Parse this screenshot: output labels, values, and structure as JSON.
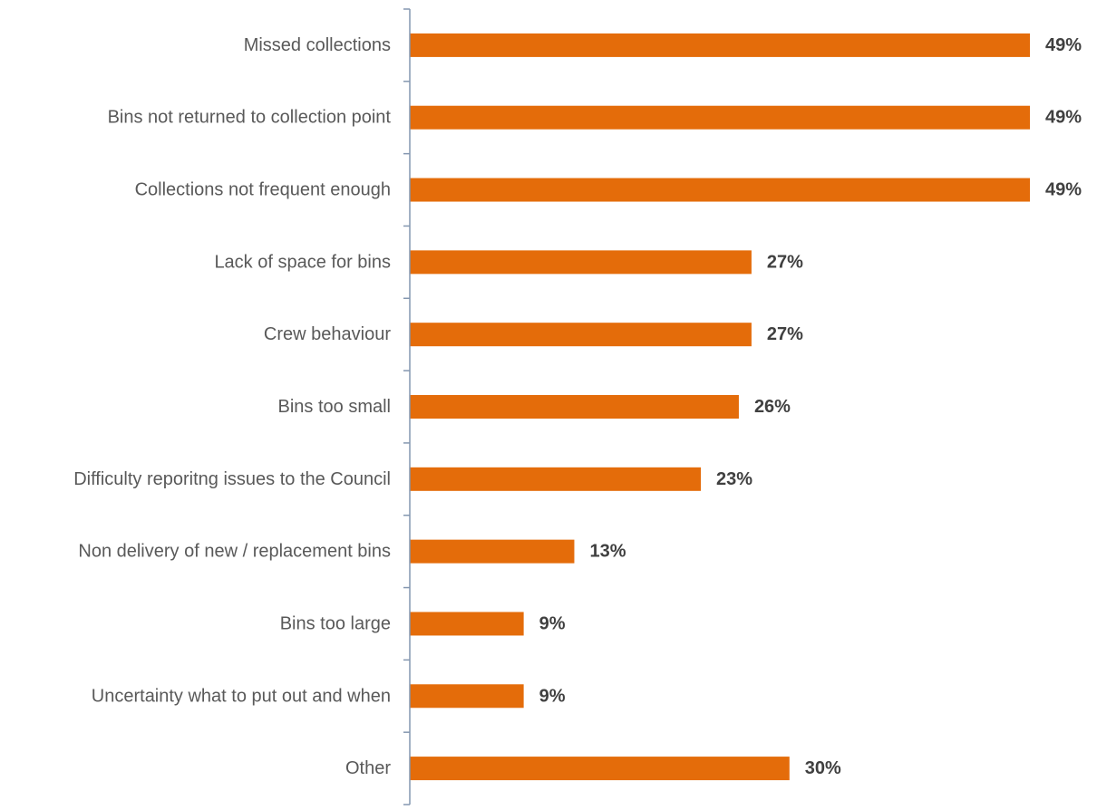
{
  "chart_data": {
    "type": "bar",
    "orientation": "horizontal",
    "categories": [
      "Missed collections",
      "Bins not returned to collection point",
      "Collections not frequent enough",
      "Lack of space for bins",
      "Crew behaviour",
      "Bins too small",
      "Difficulty reporitng issues to the Council",
      "Non delivery of new / replacement bins",
      "Bins too large",
      "Uncertainty what to put out and when",
      "Other"
    ],
    "values": [
      49,
      49,
      49,
      27,
      27,
      26,
      23,
      13,
      9,
      9,
      30
    ],
    "value_labels": [
      "49%",
      "49%",
      "49%",
      "27%",
      "27%",
      "26%",
      "23%",
      "13%",
      "9%",
      "9%",
      "30%"
    ],
    "title": "",
    "xlabel": "",
    "ylabel": "",
    "xlim": [
      0,
      49
    ],
    "grid": false,
    "legend": "none",
    "bar_color": "#E46C0A",
    "axis_color": "#8497B0"
  }
}
